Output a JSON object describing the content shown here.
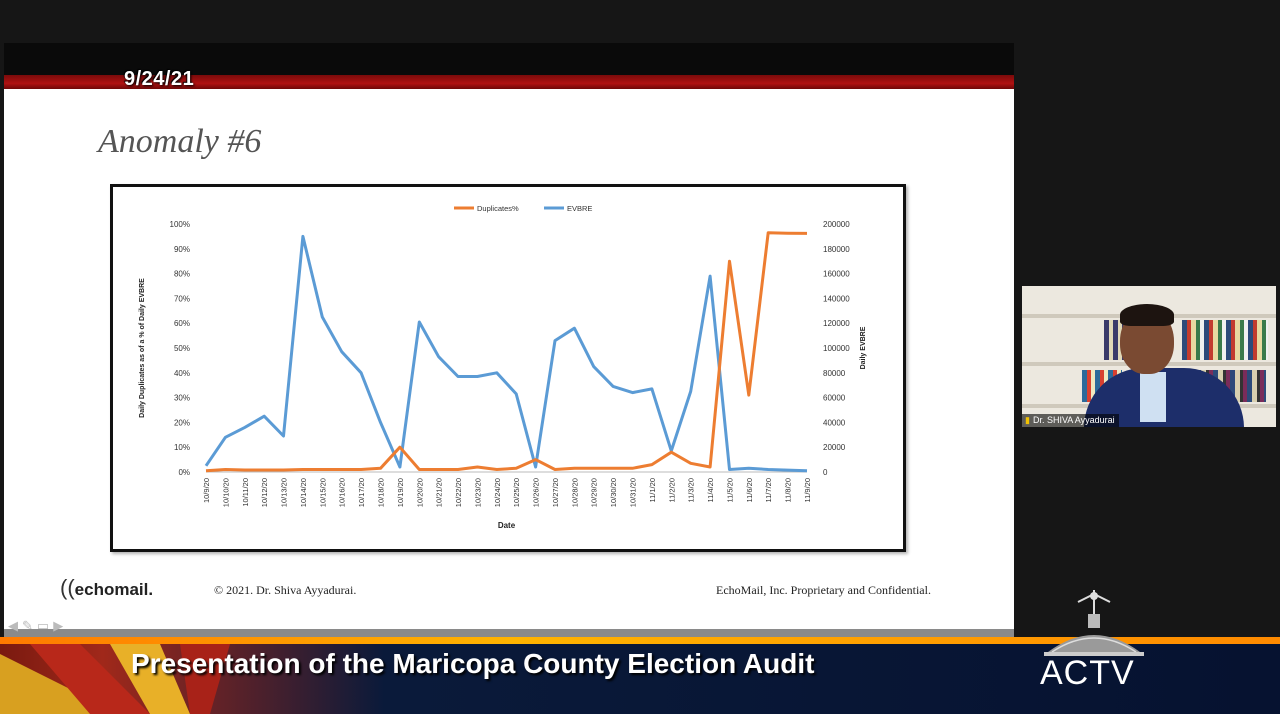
{
  "overlay": {
    "date": "9/24/21"
  },
  "slide": {
    "title": "Anomaly #6",
    "footer_copyright": "© 2021. Dr. Shiva Ayyadurai.",
    "footer_confidential": "EchoMail, Inc. Proprietary and Confidential.",
    "logo_text": "echomail."
  },
  "chart_data": {
    "type": "line",
    "xlabel": "Date",
    "ylabel_left": "Daily Duplicates as of a % of Daily EVBRE",
    "ylabel_right": "Daily EVBRE",
    "ylim_left": [
      0,
      100
    ],
    "ylim_right": [
      0,
      200000
    ],
    "yticks_left": [
      "0%",
      "10%",
      "20%",
      "30%",
      "40%",
      "50%",
      "60%",
      "70%",
      "80%",
      "90%",
      "100%"
    ],
    "yticks_right": [
      "0",
      "20000",
      "40000",
      "60000",
      "80000",
      "100000",
      "120000",
      "140000",
      "160000",
      "180000",
      "200000"
    ],
    "legend_position": "top",
    "categories": [
      "10/9/20",
      "10/10/20",
      "10/11/20",
      "10/12/20",
      "10/13/20",
      "10/14/20",
      "10/15/20",
      "10/16/20",
      "10/17/20",
      "10/18/20",
      "10/19/20",
      "10/20/20",
      "10/21/20",
      "10/22/20",
      "10/23/20",
      "10/24/20",
      "10/25/20",
      "10/26/20",
      "10/27/20",
      "10/28/20",
      "10/29/20",
      "10/30/20",
      "10/31/20",
      "11/1/20",
      "11/2/20",
      "11/3/20",
      "11/4/20",
      "11/5/20",
      "11/6/20",
      "11/7/20",
      "11/8/20",
      "11/9/20"
    ],
    "series": [
      {
        "name": "Duplicates%",
        "axis": "left",
        "color": "#ED7D31",
        "values": [
          0.5,
          1,
          0.8,
          0.8,
          0.8,
          1,
          1,
          1,
          1,
          1.5,
          10,
          1,
          1,
          1,
          2,
          1,
          1.5,
          5,
          1,
          1.5,
          1.5,
          1.5,
          1.5,
          3,
          8,
          3.5,
          2,
          85,
          31,
          96.5,
          96.3,
          96.2
        ]
      },
      {
        "name": "EVBRE",
        "axis": "right",
        "color": "#5B9BD5",
        "values": [
          5000,
          28000,
          36000,
          45000,
          29000,
          190000,
          125000,
          97000,
          80000,
          40000,
          4000,
          121000,
          93000,
          77000,
          77000,
          80000,
          63000,
          4000,
          106000,
          116000,
          85000,
          69000,
          64000,
          67000,
          17000,
          65000,
          158000,
          2000,
          3000,
          2000,
          1500,
          1000
        ]
      }
    ]
  },
  "video_tile": {
    "name_label": "Dr. SHIVA Ayyadurai"
  },
  "banner": {
    "title": "Presentation of the Maricopa County Election Audit",
    "logo": "ACTV"
  }
}
